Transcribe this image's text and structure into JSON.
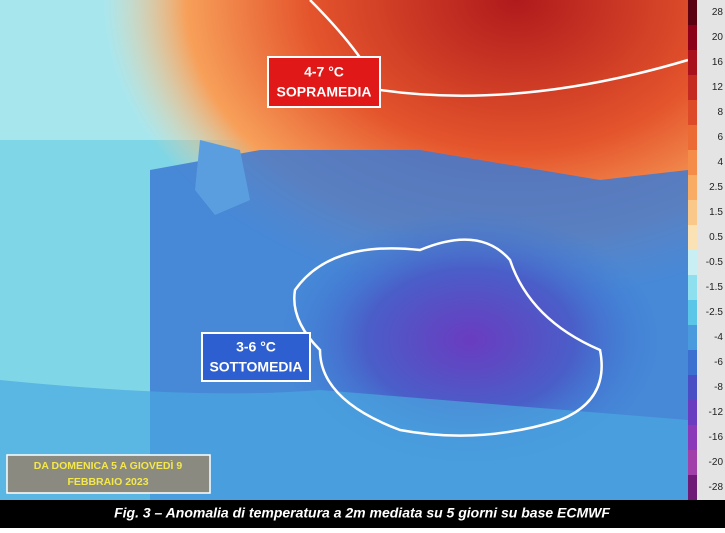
{
  "map": {
    "annotations": [
      {
        "lines": [
          "4-7 °C",
          "SOPRAMEDIA"
        ]
      },
      {
        "lines": [
          "3-6 °C",
          "SOTTOMEDIA"
        ]
      }
    ],
    "date_box": [
      "DA DOMENICA 5 A GIOVEDÌ 9",
      "FEBBRAIO 2023"
    ],
    "caption": "Fig. 3 – Anomalia di temperatura a 2m mediata su 5 giorni su base ECMWF",
    "legend": [
      {
        "label": "28",
        "color": "#5a0010"
      },
      {
        "label": "20",
        "color": "#8b0018"
      },
      {
        "label": "16",
        "color": "#a8101c"
      },
      {
        "label": "12",
        "color": "#c42a20"
      },
      {
        "label": "8",
        "color": "#dc4a28"
      },
      {
        "label": "6",
        "color": "#ec6a34"
      },
      {
        "label": "4",
        "color": "#f58c48"
      },
      {
        "label": "2.5",
        "color": "#f8ac64"
      },
      {
        "label": "1.5",
        "color": "#fac888"
      },
      {
        "label": "0.5",
        "color": "#fbe2b4"
      },
      {
        "label": "-0.5",
        "color": "#c8f0f4"
      },
      {
        "label": "-1.5",
        "color": "#8fe0ee"
      },
      {
        "label": "-2.5",
        "color": "#5cc6e8"
      },
      {
        "label": "-4",
        "color": "#4a9ade"
      },
      {
        "label": "-6",
        "color": "#3b6fd0"
      },
      {
        "label": "-8",
        "color": "#4a4ec4"
      },
      {
        "label": "-12",
        "color": "#6a3cc0"
      },
      {
        "label": "-16",
        "color": "#8a3ab8"
      },
      {
        "label": "-20",
        "color": "#a040a8"
      },
      {
        "label": "-28",
        "color": "#701a78"
      }
    ]
  }
}
